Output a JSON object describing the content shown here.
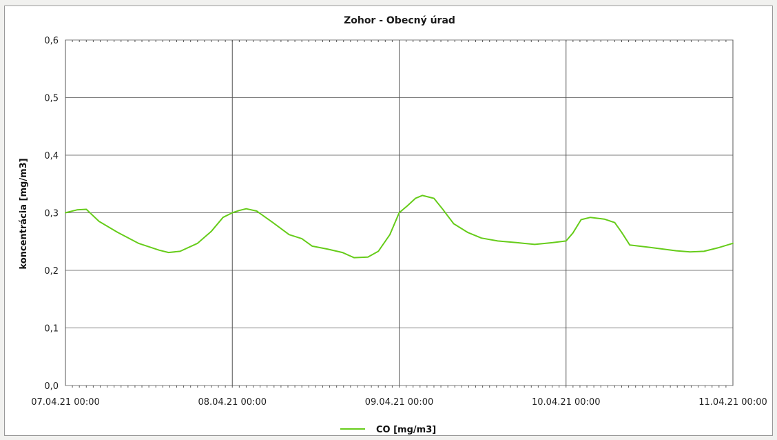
{
  "chart_data": {
    "type": "line",
    "title": "Zohor - Obecný úrad",
    "xlabel": "",
    "ylabel": "koncentrácia [mg/m3]",
    "ylim": [
      0,
      0.6
    ],
    "yticks": [
      "0,0",
      "0,1",
      "0,2",
      "0,3",
      "0,4",
      "0,5",
      "0,6"
    ],
    "yticks_values": [
      0,
      0.1,
      0.2,
      0.3,
      0.4,
      0.5,
      0.6
    ],
    "xlim_days": [
      0,
      4
    ],
    "xticks": [
      "07.04.21 00:00",
      "08.04.21 00:00",
      "09.04.21 00:00",
      "10.04.21 00:00",
      "11.04.21 00:00"
    ],
    "grid": true,
    "legend_position": "bottom-center",
    "series": [
      {
        "name": "CO [mg/m3]",
        "color": "#66cc1a",
        "points": [
          [
            "07.04.21 00:00",
            0.3
          ],
          [
            "07.04.21 01:40",
            0.305
          ],
          [
            "07.04.21 03:00",
            0.306
          ],
          [
            "07.04.21 04:50",
            0.285
          ],
          [
            "07.04.21 07:30",
            0.266
          ],
          [
            "07.04.21 10:30",
            0.247
          ],
          [
            "07.04.21 13:30",
            0.235
          ],
          [
            "07.04.21 14:50",
            0.231
          ],
          [
            "07.04.21 16:30",
            0.233
          ],
          [
            "07.04.21 19:00",
            0.247
          ],
          [
            "07.04.21 21:00",
            0.268
          ],
          [
            "07.04.21 22:40",
            0.292
          ],
          [
            "08.04.21 00:00",
            0.3
          ],
          [
            "08.04.21 01:00",
            0.304
          ],
          [
            "08.04.21 02:00",
            0.307
          ],
          [
            "08.04.21 03:30",
            0.303
          ],
          [
            "08.04.21 05:50",
            0.283
          ],
          [
            "08.04.21 08:10",
            0.262
          ],
          [
            "08.04.21 10:00",
            0.255
          ],
          [
            "08.04.21 11:30",
            0.242
          ],
          [
            "08.04.21 13:40",
            0.237
          ],
          [
            "08.04.21 15:50",
            0.231
          ],
          [
            "08.04.21 17:30",
            0.222
          ],
          [
            "08.04.21 19:30",
            0.223
          ],
          [
            "08.04.21 21:00",
            0.233
          ],
          [
            "08.04.21 22:40",
            0.262
          ],
          [
            "09.04.21 00:00",
            0.3
          ],
          [
            "09.04.21 01:10",
            0.312
          ],
          [
            "09.04.21 02:20",
            0.325
          ],
          [
            "09.04.21 03:20",
            0.33
          ],
          [
            "09.04.21 05:00",
            0.325
          ],
          [
            "09.04.21 06:20",
            0.305
          ],
          [
            "09.04.21 07:50",
            0.281
          ],
          [
            "09.04.21 09:50",
            0.266
          ],
          [
            "09.04.21 11:50",
            0.256
          ],
          [
            "09.04.21 14:10",
            0.251
          ],
          [
            "09.04.21 17:00",
            0.248
          ],
          [
            "09.04.21 19:30",
            0.245
          ],
          [
            "09.04.21 22:00",
            0.248
          ],
          [
            "10.04.21 00:00",
            0.251
          ],
          [
            "10.04.21 01:00",
            0.265
          ],
          [
            "10.04.21 02:10",
            0.288
          ],
          [
            "10.04.21 03:30",
            0.292
          ],
          [
            "10.04.21 05:30",
            0.289
          ],
          [
            "10.04.21 07:00",
            0.283
          ],
          [
            "10.04.21 08:00",
            0.266
          ],
          [
            "10.04.21 09:10",
            0.244
          ],
          [
            "10.04.21 12:00",
            0.24
          ],
          [
            "10.04.21 15:50",
            0.234
          ],
          [
            "10.04.21 17:50",
            0.232
          ],
          [
            "10.04.21 19:50",
            0.233
          ],
          [
            "10.04.21 21:50",
            0.239
          ],
          [
            "11.04.21 00:00",
            0.247
          ]
        ]
      }
    ]
  }
}
